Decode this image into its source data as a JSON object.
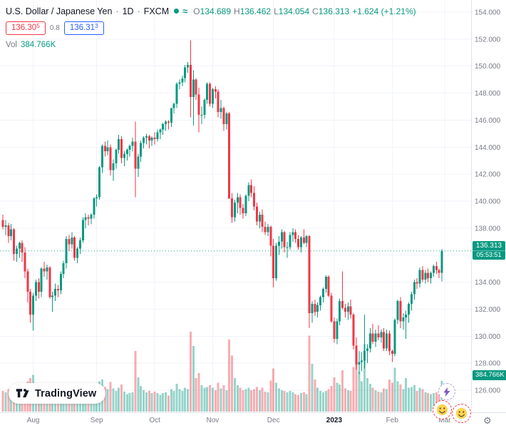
{
  "header": {
    "symbol_title": "U.S. Dollar / Japanese Yen",
    "sep1": "·",
    "interval": "1D",
    "sep2": "·",
    "exchange": "FXCM",
    "approx_glyph": "≈",
    "ohlc": {
      "o_label": "O",
      "o": "134.689",
      "h_label": "H",
      "h": "136.462",
      "l_label": "L",
      "l": "134.054",
      "c_label": "C",
      "c": "136.313",
      "change": "+1.624 (+1.21%)"
    },
    "bid": "136.30",
    "bid_sup": "5",
    "spread": "0.8",
    "ask": "136.31",
    "ask_sup": "3",
    "vol_label": "Vol",
    "vol_value": "384.766K"
  },
  "price_label": {
    "value": "136.313",
    "countdown": "05:53:51"
  },
  "volume_label": {
    "value": "384.766K"
  },
  "watermark": {
    "text": "TradingView"
  },
  "icons": {
    "gear": "⚙"
  },
  "colors": {
    "up": "#089981",
    "down": "#f23645",
    "grid": "#f0f3fa",
    "axis_text": "#787b86",
    "text_primary": "#131722",
    "last_price_line": "#089981",
    "buy": "#2962ff",
    "sell": "#f23645"
  },
  "chart_data": {
    "type": "candlestick",
    "title": "U.S. Dollar / Japanese Yen",
    "interval": "1D",
    "exchange": "FXCM",
    "last_price": 136.313,
    "last_volume_k": 384.766,
    "y_axis": {
      "ticks": [
        154,
        152,
        150,
        148,
        146,
        144,
        142,
        140,
        138,
        136,
        134,
        132,
        130,
        128,
        126
      ],
      "range": [
        124.4,
        154.9
      ],
      "grid": true
    },
    "x_axis": {
      "labels": [
        {
          "label": "Aug",
          "index": 11,
          "emphasis": false
        },
        {
          "label": "Sep",
          "index": 34,
          "emphasis": false
        },
        {
          "label": "Oct",
          "index": 55,
          "emphasis": false
        },
        {
          "label": "Nov",
          "index": 76,
          "emphasis": false
        },
        {
          "label": "Dec",
          "index": 98,
          "emphasis": false
        },
        {
          "label": "2023",
          "index": 120,
          "emphasis": true
        },
        {
          "label": "Feb",
          "index": 141,
          "emphasis": false
        },
        {
          "label": "Mar",
          "index": 160,
          "emphasis": false
        }
      ]
    },
    "candles_format": [
      "open",
      "high",
      "low",
      "close",
      "volume_k"
    ],
    "candles": [
      [
        138.6,
        139.0,
        137.9,
        138.1,
        260
      ],
      [
        138.1,
        138.6,
        137.5,
        138.2,
        240
      ],
      [
        138.2,
        138.4,
        136.9,
        137.4,
        280
      ],
      [
        137.4,
        138.3,
        137.1,
        137.9,
        230
      ],
      [
        137.9,
        138.0,
        135.6,
        136.1,
        320
      ],
      [
        136.1,
        136.7,
        135.5,
        136.5,
        250
      ],
      [
        136.5,
        137.0,
        135.8,
        136.9,
        220
      ],
      [
        136.9,
        137.1,
        135.5,
        136.2,
        270
      ],
      [
        136.2,
        136.6,
        134.3,
        134.8,
        350
      ],
      [
        134.8,
        135.0,
        132.5,
        133.3,
        380
      ],
      [
        133.3,
        133.5,
        131.0,
        131.6,
        420
      ],
      [
        131.6,
        133.2,
        130.4,
        133.0,
        460
      ],
      [
        133.0,
        134.2,
        132.6,
        134.0,
        340
      ],
      [
        134.0,
        134.3,
        132.8,
        133.3,
        290
      ],
      [
        133.3,
        135.1,
        132.9,
        135.0,
        330
      ],
      [
        135.0,
        135.5,
        134.4,
        134.8,
        260
      ],
      [
        134.8,
        135.3,
        134.2,
        135.1,
        240
      ],
      [
        135.1,
        135.2,
        132.8,
        132.9,
        320
      ],
      [
        132.9,
        133.3,
        131.8,
        133.0,
        280
      ],
      [
        133.0,
        133.9,
        132.6,
        133.5,
        230
      ],
      [
        133.5,
        133.8,
        132.9,
        133.4,
        200
      ],
      [
        133.4,
        134.8,
        133.1,
        134.6,
        250
      ],
      [
        134.6,
        135.6,
        134.3,
        135.4,
        260
      ],
      [
        135.4,
        137.4,
        135.0,
        137.2,
        350
      ],
      [
        137.2,
        137.5,
        136.3,
        136.8,
        270
      ],
      [
        136.8,
        137.7,
        136.5,
        137.3,
        240
      ],
      [
        137.3,
        137.4,
        135.6,
        135.8,
        290
      ],
      [
        135.8,
        136.6,
        135.4,
        136.5,
        230
      ],
      [
        136.5,
        137.3,
        136.1,
        137.1,
        220
      ],
      [
        137.1,
        138.8,
        136.9,
        138.6,
        310
      ],
      [
        138.6,
        139.1,
        138.0,
        138.8,
        270
      ],
      [
        138.8,
        139.0,
        138.2,
        138.7,
        240
      ],
      [
        138.7,
        139.1,
        138.3,
        139.0,
        250
      ],
      [
        139.0,
        140.3,
        138.7,
        140.2,
        300
      ],
      [
        140.2,
        140.5,
        139.6,
        140.3,
        270
      ],
      [
        140.3,
        142.6,
        140.1,
        142.5,
        380
      ],
      [
        142.5,
        144.2,
        142.1,
        144.1,
        400
      ],
      [
        144.1,
        144.4,
        143.3,
        143.7,
        310
      ],
      [
        143.7,
        144.5,
        143.4,
        144.0,
        280
      ],
      [
        144.0,
        144.2,
        141.9,
        142.3,
        370
      ],
      [
        142.3,
        143.1,
        141.5,
        142.8,
        290
      ],
      [
        142.8,
        143.9,
        142.4,
        143.8,
        260
      ],
      [
        143.8,
        144.9,
        143.5,
        144.6,
        300
      ],
      [
        144.6,
        144.8,
        142.8,
        143.2,
        340
      ],
      [
        143.2,
        143.7,
        142.6,
        143.5,
        250
      ],
      [
        143.5,
        143.9,
        143.0,
        143.8,
        220
      ],
      [
        143.8,
        144.2,
        143.3,
        144.1,
        230
      ],
      [
        144.1,
        144.7,
        143.7,
        144.4,
        240
      ],
      [
        144.4,
        145.9,
        140.3,
        142.4,
        760
      ],
      [
        142.4,
        143.5,
        141.8,
        143.3,
        430
      ],
      [
        143.3,
        144.5,
        142.9,
        144.3,
        320
      ],
      [
        144.3,
        144.8,
        143.9,
        144.7,
        270
      ],
      [
        144.7,
        145.0,
        144.2,
        144.8,
        240
      ],
      [
        144.8,
        144.9,
        143.9,
        144.5,
        260
      ],
      [
        144.5,
        144.8,
        144.1,
        144.7,
        230
      ],
      [
        144.7,
        145.1,
        144.2,
        144.6,
        250
      ],
      [
        144.6,
        145.3,
        144.4,
        145.1,
        230
      ],
      [
        145.1,
        145.4,
        144.6,
        145.3,
        210
      ],
      [
        145.3,
        145.8,
        144.9,
        145.7,
        230
      ],
      [
        145.7,
        146.0,
        145.2,
        145.9,
        240
      ],
      [
        145.9,
        146.0,
        145.3,
        145.8,
        200
      ],
      [
        145.8,
        146.9,
        145.5,
        146.9,
        280
      ],
      [
        146.9,
        147.3,
        146.5,
        147.2,
        260
      ],
      [
        147.2,
        148.8,
        146.9,
        148.7,
        350
      ],
      [
        148.7,
        149.0,
        148.3,
        148.8,
        280
      ],
      [
        148.8,
        149.3,
        148.5,
        149.1,
        260
      ],
      [
        149.1,
        150.1,
        148.8,
        149.9,
        300
      ],
      [
        149.9,
        150.3,
        149.5,
        150.1,
        280
      ],
      [
        150.1,
        151.9,
        146.2,
        147.7,
        1000
      ],
      [
        147.7,
        149.7,
        145.6,
        149.0,
        820
      ],
      [
        149.0,
        149.1,
        147.5,
        147.9,
        420
      ],
      [
        147.9,
        148.4,
        145.1,
        146.4,
        480
      ],
      [
        146.4,
        147.0,
        145.7,
        146.4,
        330
      ],
      [
        146.4,
        147.6,
        146.1,
        147.5,
        300
      ],
      [
        147.5,
        148.8,
        147.2,
        148.7,
        310
      ],
      [
        148.7,
        148.8,
        147.0,
        147.2,
        330
      ],
      [
        147.2,
        148.4,
        146.9,
        148.3,
        300
      ],
      [
        148.3,
        148.5,
        147.6,
        148.1,
        270
      ],
      [
        148.1,
        148.3,
        146.2,
        146.6,
        360
      ],
      [
        146.6,
        147.5,
        146.1,
        146.9,
        290
      ],
      [
        146.9,
        147.0,
        145.2,
        145.7,
        330
      ],
      [
        145.7,
        146.6,
        145.3,
        146.5,
        270
      ],
      [
        146.5,
        146.6,
        140.2,
        140.2,
        900
      ],
      [
        140.2,
        140.6,
        138.4,
        138.8,
        700
      ],
      [
        138.8,
        140.1,
        138.5,
        139.9,
        420
      ],
      [
        139.9,
        140.6,
        139.1,
        140.3,
        330
      ],
      [
        140.3,
        140.5,
        139.0,
        139.5,
        300
      ],
      [
        139.5,
        139.8,
        138.7,
        139.1,
        270
      ],
      [
        139.1,
        140.5,
        138.9,
        140.4,
        280
      ],
      [
        140.4,
        141.4,
        140.0,
        141.2,
        300
      ],
      [
        141.2,
        141.6,
        140.3,
        140.6,
        270
      ],
      [
        140.6,
        141.1,
        139.3,
        139.6,
        280
      ],
      [
        139.6,
        139.9,
        138.2,
        138.5,
        310
      ],
      [
        138.5,
        139.2,
        138.0,
        139.0,
        270
      ],
      [
        139.0,
        139.4,
        137.7,
        138.1,
        300
      ],
      [
        138.1,
        138.5,
        137.5,
        137.7,
        250
      ],
      [
        137.7,
        138.3,
        137.4,
        138.1,
        240
      ],
      [
        138.1,
        138.2,
        135.9,
        136.7,
        390
      ],
      [
        136.7,
        137.2,
        133.6,
        134.3,
        540
      ],
      [
        134.3,
        136.9,
        134.1,
        136.7,
        360
      ],
      [
        136.7,
        137.4,
        136.0,
        137.0,
        290
      ],
      [
        137.0,
        137.9,
        136.5,
        137.7,
        270
      ],
      [
        137.7,
        137.8,
        136.2,
        136.6,
        260
      ],
      [
        136.6,
        137.0,
        135.8,
        136.6,
        240
      ],
      [
        136.6,
        137.7,
        136.4,
        137.5,
        260
      ],
      [
        137.5,
        138.0,
        137.0,
        137.7,
        240
      ],
      [
        137.7,
        137.9,
        136.9,
        137.2,
        220
      ],
      [
        137.2,
        137.5,
        136.4,
        136.6,
        210
      ],
      [
        136.6,
        137.4,
        136.2,
        137.3,
        230
      ],
      [
        137.3,
        137.9,
        136.8,
        136.9,
        240
      ],
      [
        136.9,
        137.5,
        136.6,
        137.4,
        220
      ],
      [
        137.4,
        137.5,
        130.6,
        131.7,
        950
      ],
      [
        131.7,
        132.6,
        131.0,
        132.4,
        600
      ],
      [
        132.4,
        132.7,
        131.5,
        131.8,
        400
      ],
      [
        131.8,
        132.5,
        131.4,
        132.3,
        300
      ],
      [
        132.3,
        133.0,
        131.9,
        132.9,
        260
      ],
      [
        132.9,
        133.6,
        132.5,
        133.5,
        240
      ],
      [
        133.5,
        134.5,
        133.2,
        134.4,
        260
      ],
      [
        134.4,
        134.5,
        132.9,
        133.0,
        280
      ],
      [
        133.0,
        133.2,
        131.0,
        131.1,
        320
      ],
      [
        131.1,
        131.4,
        129.5,
        129.8,
        430
      ],
      [
        129.8,
        131.3,
        129.4,
        131.1,
        360
      ],
      [
        131.1,
        132.8,
        130.8,
        132.6,
        340
      ],
      [
        132.6,
        134.8,
        132.0,
        132.1,
        520
      ],
      [
        132.1,
        132.4,
        131.4,
        131.8,
        290
      ],
      [
        131.8,
        132.5,
        131.2,
        132.2,
        270
      ],
      [
        132.2,
        132.7,
        131.3,
        131.6,
        260
      ],
      [
        131.6,
        131.7,
        129.0,
        129.3,
        560
      ],
      [
        129.3,
        129.9,
        127.5,
        127.9,
        600
      ],
      [
        127.9,
        128.9,
        127.2,
        128.1,
        500
      ],
      [
        128.1,
        128.8,
        127.4,
        128.2,
        380
      ],
      [
        128.2,
        131.6,
        127.6,
        128.9,
        850
      ],
      [
        128.9,
        129.4,
        128.0,
        129.1,
        420
      ],
      [
        129.1,
        130.6,
        128.8,
        130.2,
        350
      ],
      [
        130.2,
        130.9,
        129.4,
        129.6,
        300
      ],
      [
        129.6,
        130.5,
        129.2,
        130.2,
        270
      ],
      [
        130.2,
        130.8,
        129.7,
        129.9,
        250
      ],
      [
        129.9,
        130.5,
        129.5,
        130.3,
        240
      ],
      [
        130.3,
        130.6,
        128.9,
        129.1,
        290
      ],
      [
        129.1,
        130.5,
        128.9,
        130.2,
        280
      ],
      [
        130.2,
        130.4,
        128.6,
        128.9,
        400
      ],
      [
        128.9,
        129.0,
        128.1,
        128.7,
        360
      ],
      [
        128.7,
        131.3,
        128.5,
        131.2,
        550
      ],
      [
        131.2,
        132.7,
        130.9,
        132.6,
        380
      ],
      [
        132.6,
        132.9,
        130.6,
        131.1,
        340
      ],
      [
        131.1,
        131.7,
        130.5,
        131.4,
        280
      ],
      [
        131.4,
        131.9,
        129.8,
        131.6,
        420
      ],
      [
        131.6,
        132.5,
        131.0,
        132.4,
        300
      ],
      [
        132.4,
        133.3,
        131.9,
        133.1,
        310
      ],
      [
        133.1,
        134.2,
        132.7,
        134.0,
        330
      ],
      [
        134.0,
        134.3,
        133.5,
        133.9,
        260
      ],
      [
        133.9,
        135.1,
        133.6,
        134.9,
        300
      ],
      [
        134.9,
        135.2,
        134.0,
        134.2,
        280
      ],
      [
        134.2,
        134.9,
        133.9,
        134.7,
        240
      ],
      [
        134.7,
        135.0,
        134.0,
        134.3,
        230
      ],
      [
        134.3,
        134.8,
        133.9,
        134.7,
        220
      ],
      [
        134.7,
        135.3,
        134.4,
        135.2,
        230
      ],
      [
        135.2,
        135.5,
        134.6,
        134.9,
        240
      ],
      [
        134.9,
        135.0,
        134.3,
        134.7,
        220
      ],
      [
        134.689,
        136.462,
        134.054,
        136.313,
        384.766
      ]
    ]
  }
}
